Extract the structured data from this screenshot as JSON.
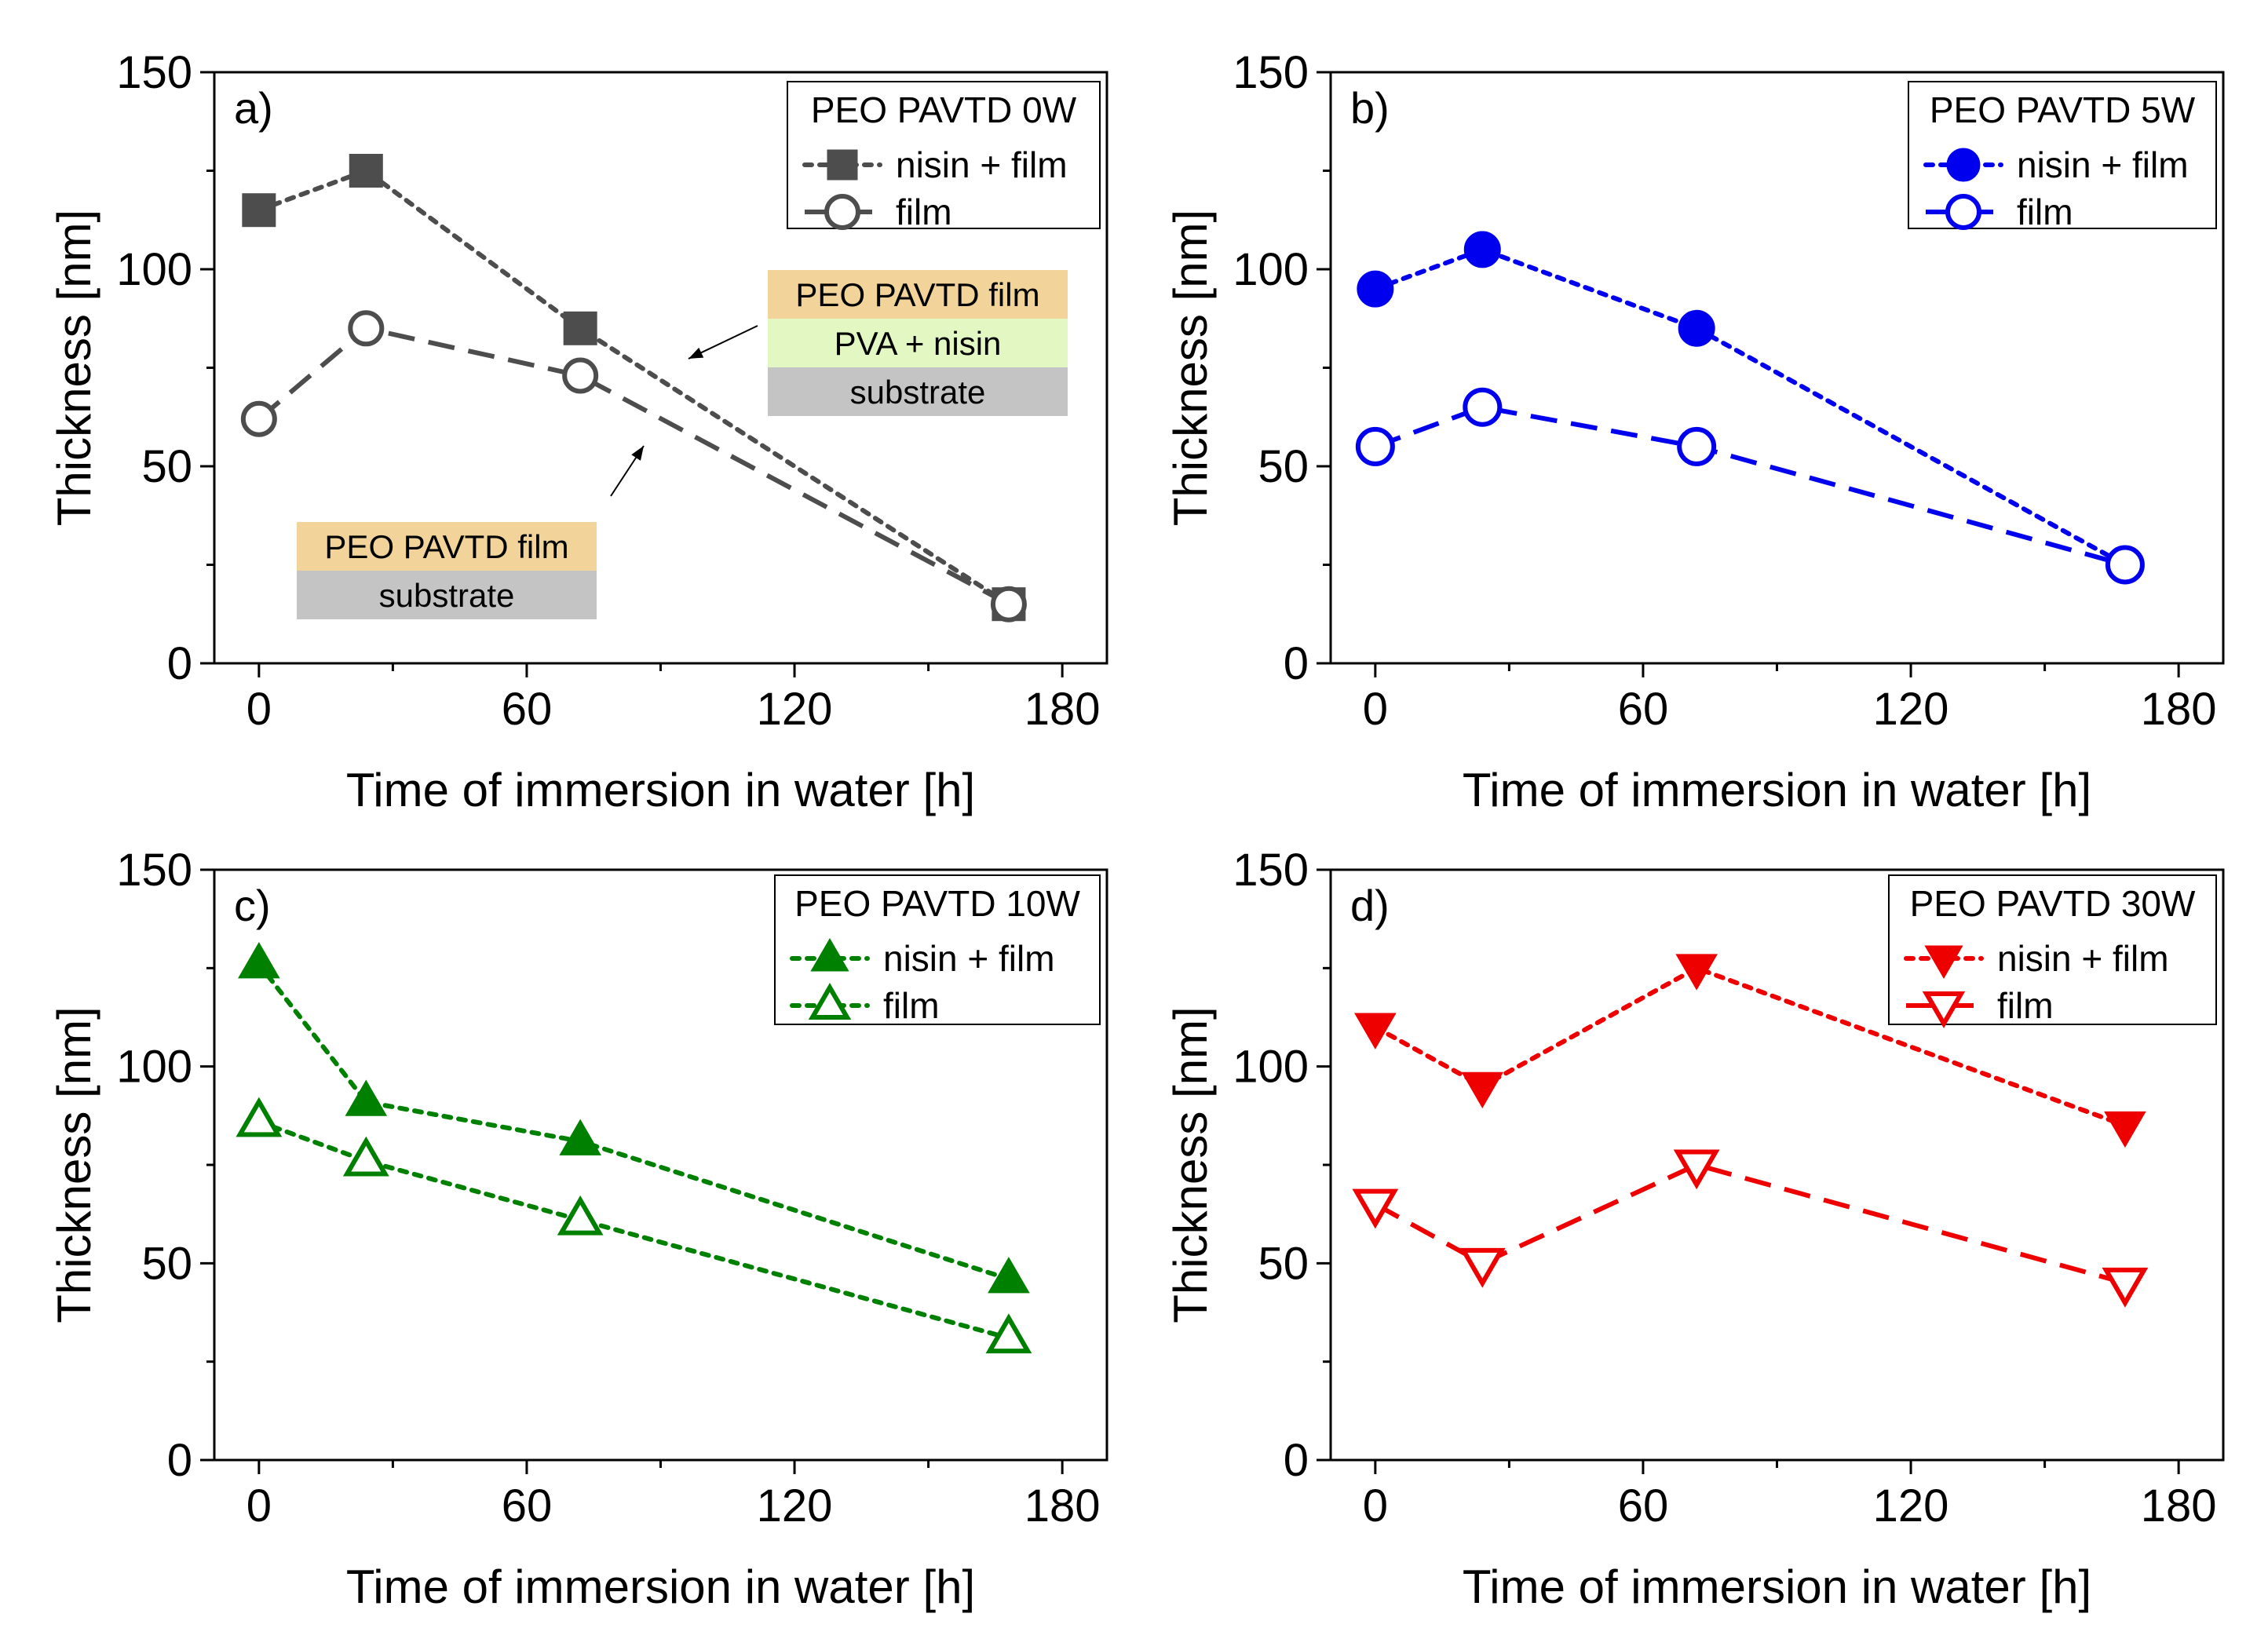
{
  "chart_data": [
    {
      "type": "line",
      "panel_label": "a)",
      "legend_title": "PEO PAVTD 0W",
      "color": "#4d4d4d",
      "xlabel": "Time of immersion in water [h]",
      "ylabel": "Thickness [nm]",
      "xlim": [
        -10,
        190
      ],
      "ylim": [
        0,
        150
      ],
      "xticks": [
        "0",
        "60",
        "120",
        "180"
      ],
      "yticks": [
        "0",
        "50",
        "100",
        "150"
      ],
      "x": [
        0,
        24,
        72,
        168
      ],
      "series": [
        {
          "name": "nisin + film",
          "values": [
            115,
            125,
            85,
            15
          ],
          "marker": "square",
          "filled": true,
          "line": "dotted"
        },
        {
          "name": "film",
          "values": [
            62,
            85,
            73,
            15
          ],
          "marker": "circle",
          "filled": false,
          "line": "dashed"
        }
      ],
      "annotations": [
        {
          "layers": [
            {
              "label": "PEO PAVTD film",
              "color": "#f2d49b"
            },
            {
              "label": "PVA + nisin",
              "color": "#e2f7c2"
            },
            {
              "label": "substrate",
              "color": "#c4c4c4"
            }
          ],
          "points_to": "nisin + film"
        },
        {
          "layers": [
            {
              "label": "PEO PAVTD film",
              "color": "#f2d49b"
            },
            {
              "label": "substrate",
              "color": "#c4c4c4"
            }
          ],
          "points_to": "film"
        }
      ]
    },
    {
      "type": "line",
      "panel_label": "b)",
      "legend_title": "PEO PAVTD 5W",
      "color": "#0000ee",
      "xlabel": "Time of immersion in water [h]",
      "ylabel": "Thickness [nm]",
      "xlim": [
        -10,
        190
      ],
      "ylim": [
        0,
        150
      ],
      "xticks": [
        "0",
        "60",
        "120",
        "180"
      ],
      "yticks": [
        "0",
        "50",
        "100",
        "150"
      ],
      "x": [
        0,
        24,
        72,
        168
      ],
      "series": [
        {
          "name": "nisin + film",
          "values": [
            95,
            105,
            85,
            25
          ],
          "marker": "circle",
          "filled": true,
          "line": "dotted"
        },
        {
          "name": "film",
          "values": [
            55,
            65,
            55,
            25
          ],
          "marker": "circle",
          "filled": false,
          "line": "dashed"
        }
      ]
    },
    {
      "type": "line",
      "panel_label": "c)",
      "legend_title": "PEO PAVTD 10W",
      "color": "#008000",
      "xlabel": "Time of immersion in water [h]",
      "ylabel": "Thickness [nm]",
      "xlim": [
        -10,
        190
      ],
      "ylim": [
        0,
        150
      ],
      "xticks": [
        "0",
        "60",
        "120",
        "180"
      ],
      "yticks": [
        "0",
        "50",
        "100",
        "150"
      ],
      "x": [
        0,
        24,
        72,
        168
      ],
      "series": [
        {
          "name": "nisin + film",
          "values": [
            126,
            91,
            81,
            46
          ],
          "marker": "triangle-up",
          "filled": true,
          "line": "dotted"
        },
        {
          "name": "film",
          "values": [
            86,
            76,
            61,
            31
          ],
          "marker": "triangle-up",
          "filled": false,
          "line": "dotted"
        }
      ]
    },
    {
      "type": "line",
      "panel_label": "d)",
      "legend_title": "PEO PAVTD 30W",
      "color": "#ee0000",
      "xlabel": "Time of immersion in water [h]",
      "ylabel": "Thickness [nm]",
      "xlim": [
        -10,
        190
      ],
      "ylim": [
        0,
        150
      ],
      "xticks": [
        "0",
        "60",
        "120",
        "180"
      ],
      "yticks": [
        "0",
        "50",
        "100",
        "150"
      ],
      "x": [
        0,
        24,
        72,
        168
      ],
      "series": [
        {
          "name": "nisin + film",
          "values": [
            110,
            95,
            125,
            85
          ],
          "marker": "triangle-down",
          "filled": true,
          "line": "dotted"
        },
        {
          "name": "film",
          "values": [
            65,
            50,
            75,
            45
          ],
          "marker": "triangle-down",
          "filled": false,
          "line": "dashed"
        }
      ]
    }
  ]
}
